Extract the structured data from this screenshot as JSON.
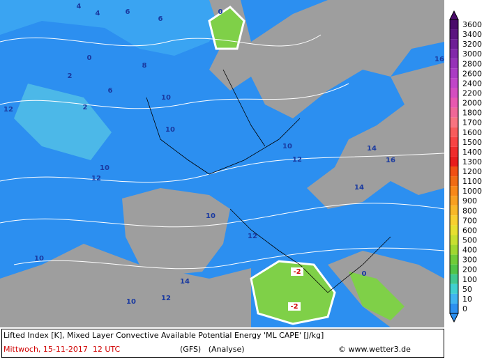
{
  "map": {
    "contour_labels": [
      "4",
      "4",
      "6",
      "6",
      "0",
      "0",
      "2",
      "8",
      "10",
      "12",
      "2",
      "6",
      "10",
      "10",
      "12",
      "12",
      "10",
      "16",
      "14",
      "14",
      "10",
      "12",
      "-2",
      "-2",
      "10",
      "10",
      "12",
      "14",
      "0",
      "16"
    ],
    "legend": {
      "levels": [
        3600,
        3400,
        3200,
        3000,
        2800,
        2600,
        2400,
        2200,
        2000,
        1800,
        1700,
        1600,
        1500,
        1400,
        1300,
        1200,
        1100,
        1000,
        900,
        800,
        700,
        600,
        500,
        400,
        300,
        200,
        100,
        50,
        10,
        0
      ],
      "colors": [
        "#4a0a6a",
        "#5c1480",
        "#6e1e96",
        "#8228aa",
        "#9632b8",
        "#aa3cc4",
        "#c046c8",
        "#d44ec0",
        "#e858b0",
        "#f06898",
        "#f87480",
        "#f85c5c",
        "#f84444",
        "#f02c2c",
        "#e81c1c",
        "#f05014",
        "#f06c14",
        "#f88818",
        "#f8a020",
        "#f8b828",
        "#f8d030",
        "#e8e030",
        "#c8e030",
        "#a0d830",
        "#70cc38",
        "#50c448",
        "#40c890",
        "#40d0d0",
        "#40b4f0",
        "#2c90f0"
      ]
    }
  },
  "footer": {
    "line1": "Lifted Index [K], Mixed Layer Convective Available Potential Energy 'ML CAPE' [J/kg]",
    "date": "Mittwoch, 15-11-2017  12 UTC",
    "model": "(GFS)   (Analyse)",
    "credit": "© www.wetter3.de"
  }
}
